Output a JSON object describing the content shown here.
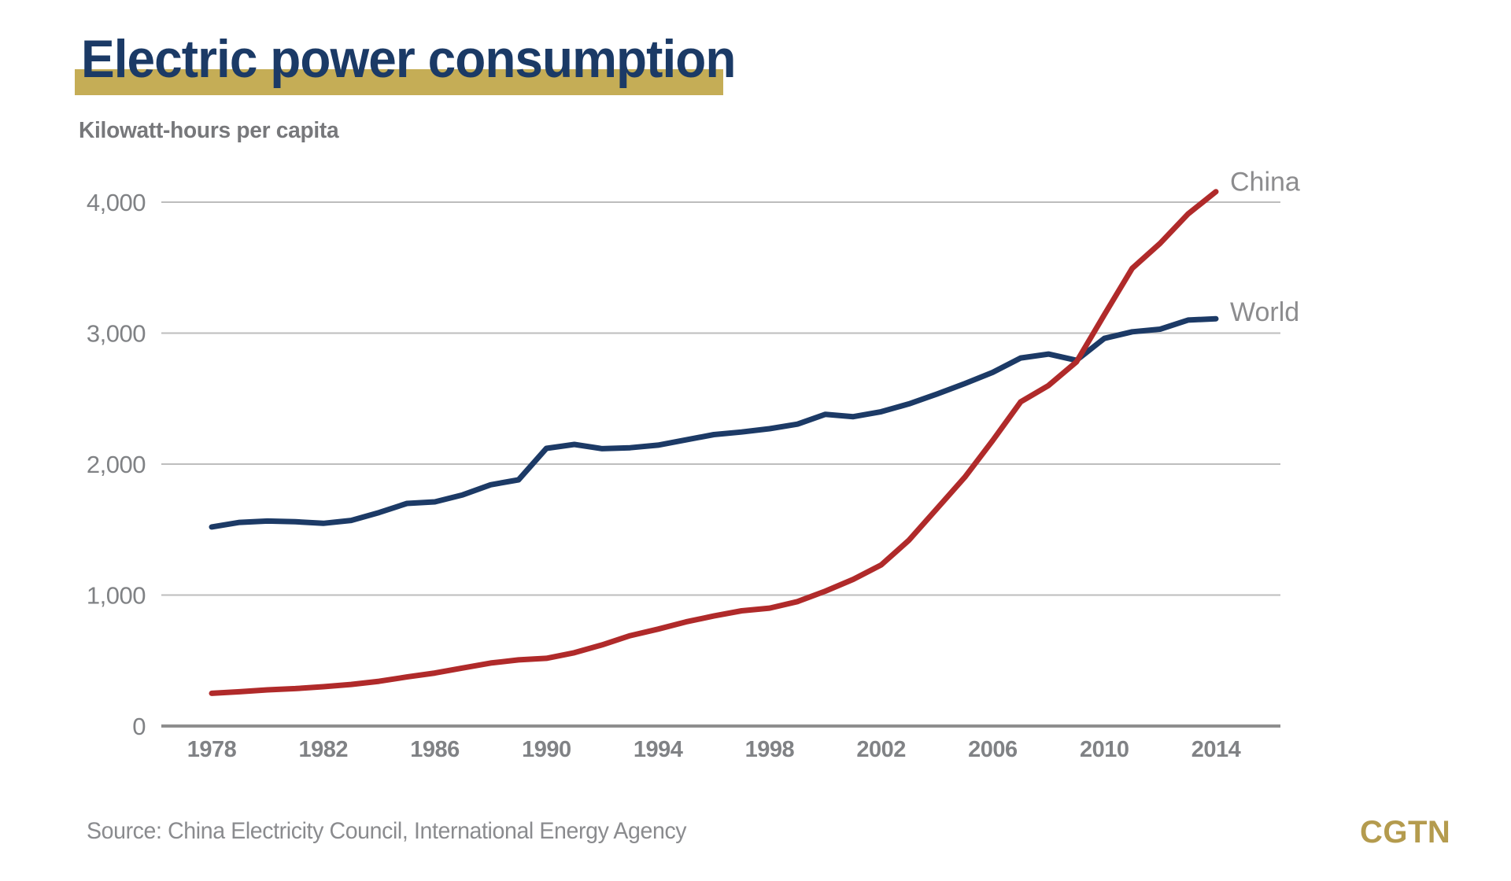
{
  "header": {
    "title": "Electric power consumption",
    "subtitle": "Kilowatt-hours per capita"
  },
  "footer": {
    "source": "Source: China Electricity Council, International Energy Agency",
    "logo": "CGTN"
  },
  "colors": {
    "title_navy": "#1b3a66",
    "gold_bar": "#c5ad56",
    "subtitle_gray": "#77787b",
    "tick_gray": "#808285",
    "gridline": "#bdbdbd",
    "axis": "#8e8e8e",
    "series_label_gray": "#8c8c8e",
    "source_gray": "#8a8b8e",
    "logo_gold": "#b49b4e",
    "world": "#1c3a66",
    "china": "#b02a2a"
  },
  "chart_data": {
    "type": "line",
    "title": "Electric power consumption",
    "ylabel": "Kilowatt-hours per capita",
    "xlabel": "",
    "grid": "horizontal",
    "legend_position": "end-of-line",
    "ylim": [
      0,
      4300
    ],
    "y_ticks": [
      0,
      1000,
      2000,
      3000,
      4000
    ],
    "x_ticks": [
      1978,
      1982,
      1986,
      1990,
      1994,
      1998,
      2002,
      2006,
      2010,
      2014
    ],
    "x": [
      1978,
      1979,
      1980,
      1981,
      1982,
      1983,
      1984,
      1985,
      1986,
      1987,
      1988,
      1989,
      1990,
      1991,
      1992,
      1993,
      1994,
      1995,
      1996,
      1997,
      1998,
      1999,
      2000,
      2001,
      2002,
      2003,
      2004,
      2005,
      2006,
      2007,
      2008,
      2009,
      2010,
      2011,
      2012,
      2013,
      2014
    ],
    "series": [
      {
        "name": "World",
        "color_key": "world",
        "values": [
          1520,
          1555,
          1565,
          1560,
          1548,
          1570,
          1630,
          1700,
          1712,
          1765,
          1842,
          1880,
          2120,
          2150,
          2118,
          2125,
          2145,
          2185,
          2225,
          2245,
          2270,
          2305,
          2380,
          2362,
          2400,
          2460,
          2535,
          2615,
          2700,
          2810,
          2840,
          2792,
          2960,
          3010,
          3030,
          3100,
          3110
        ]
      },
      {
        "name": "China",
        "color_key": "china",
        "values": [
          250,
          262,
          276,
          286,
          300,
          318,
          342,
          375,
          405,
          443,
          481,
          505,
          517,
          560,
          620,
          690,
          740,
          795,
          840,
          880,
          900,
          950,
          1030,
          1120,
          1230,
          1420,
          1660,
          1900,
          2180,
          2475,
          2600,
          2780,
          3140,
          3495,
          3685,
          3910,
          4080
        ]
      }
    ]
  }
}
